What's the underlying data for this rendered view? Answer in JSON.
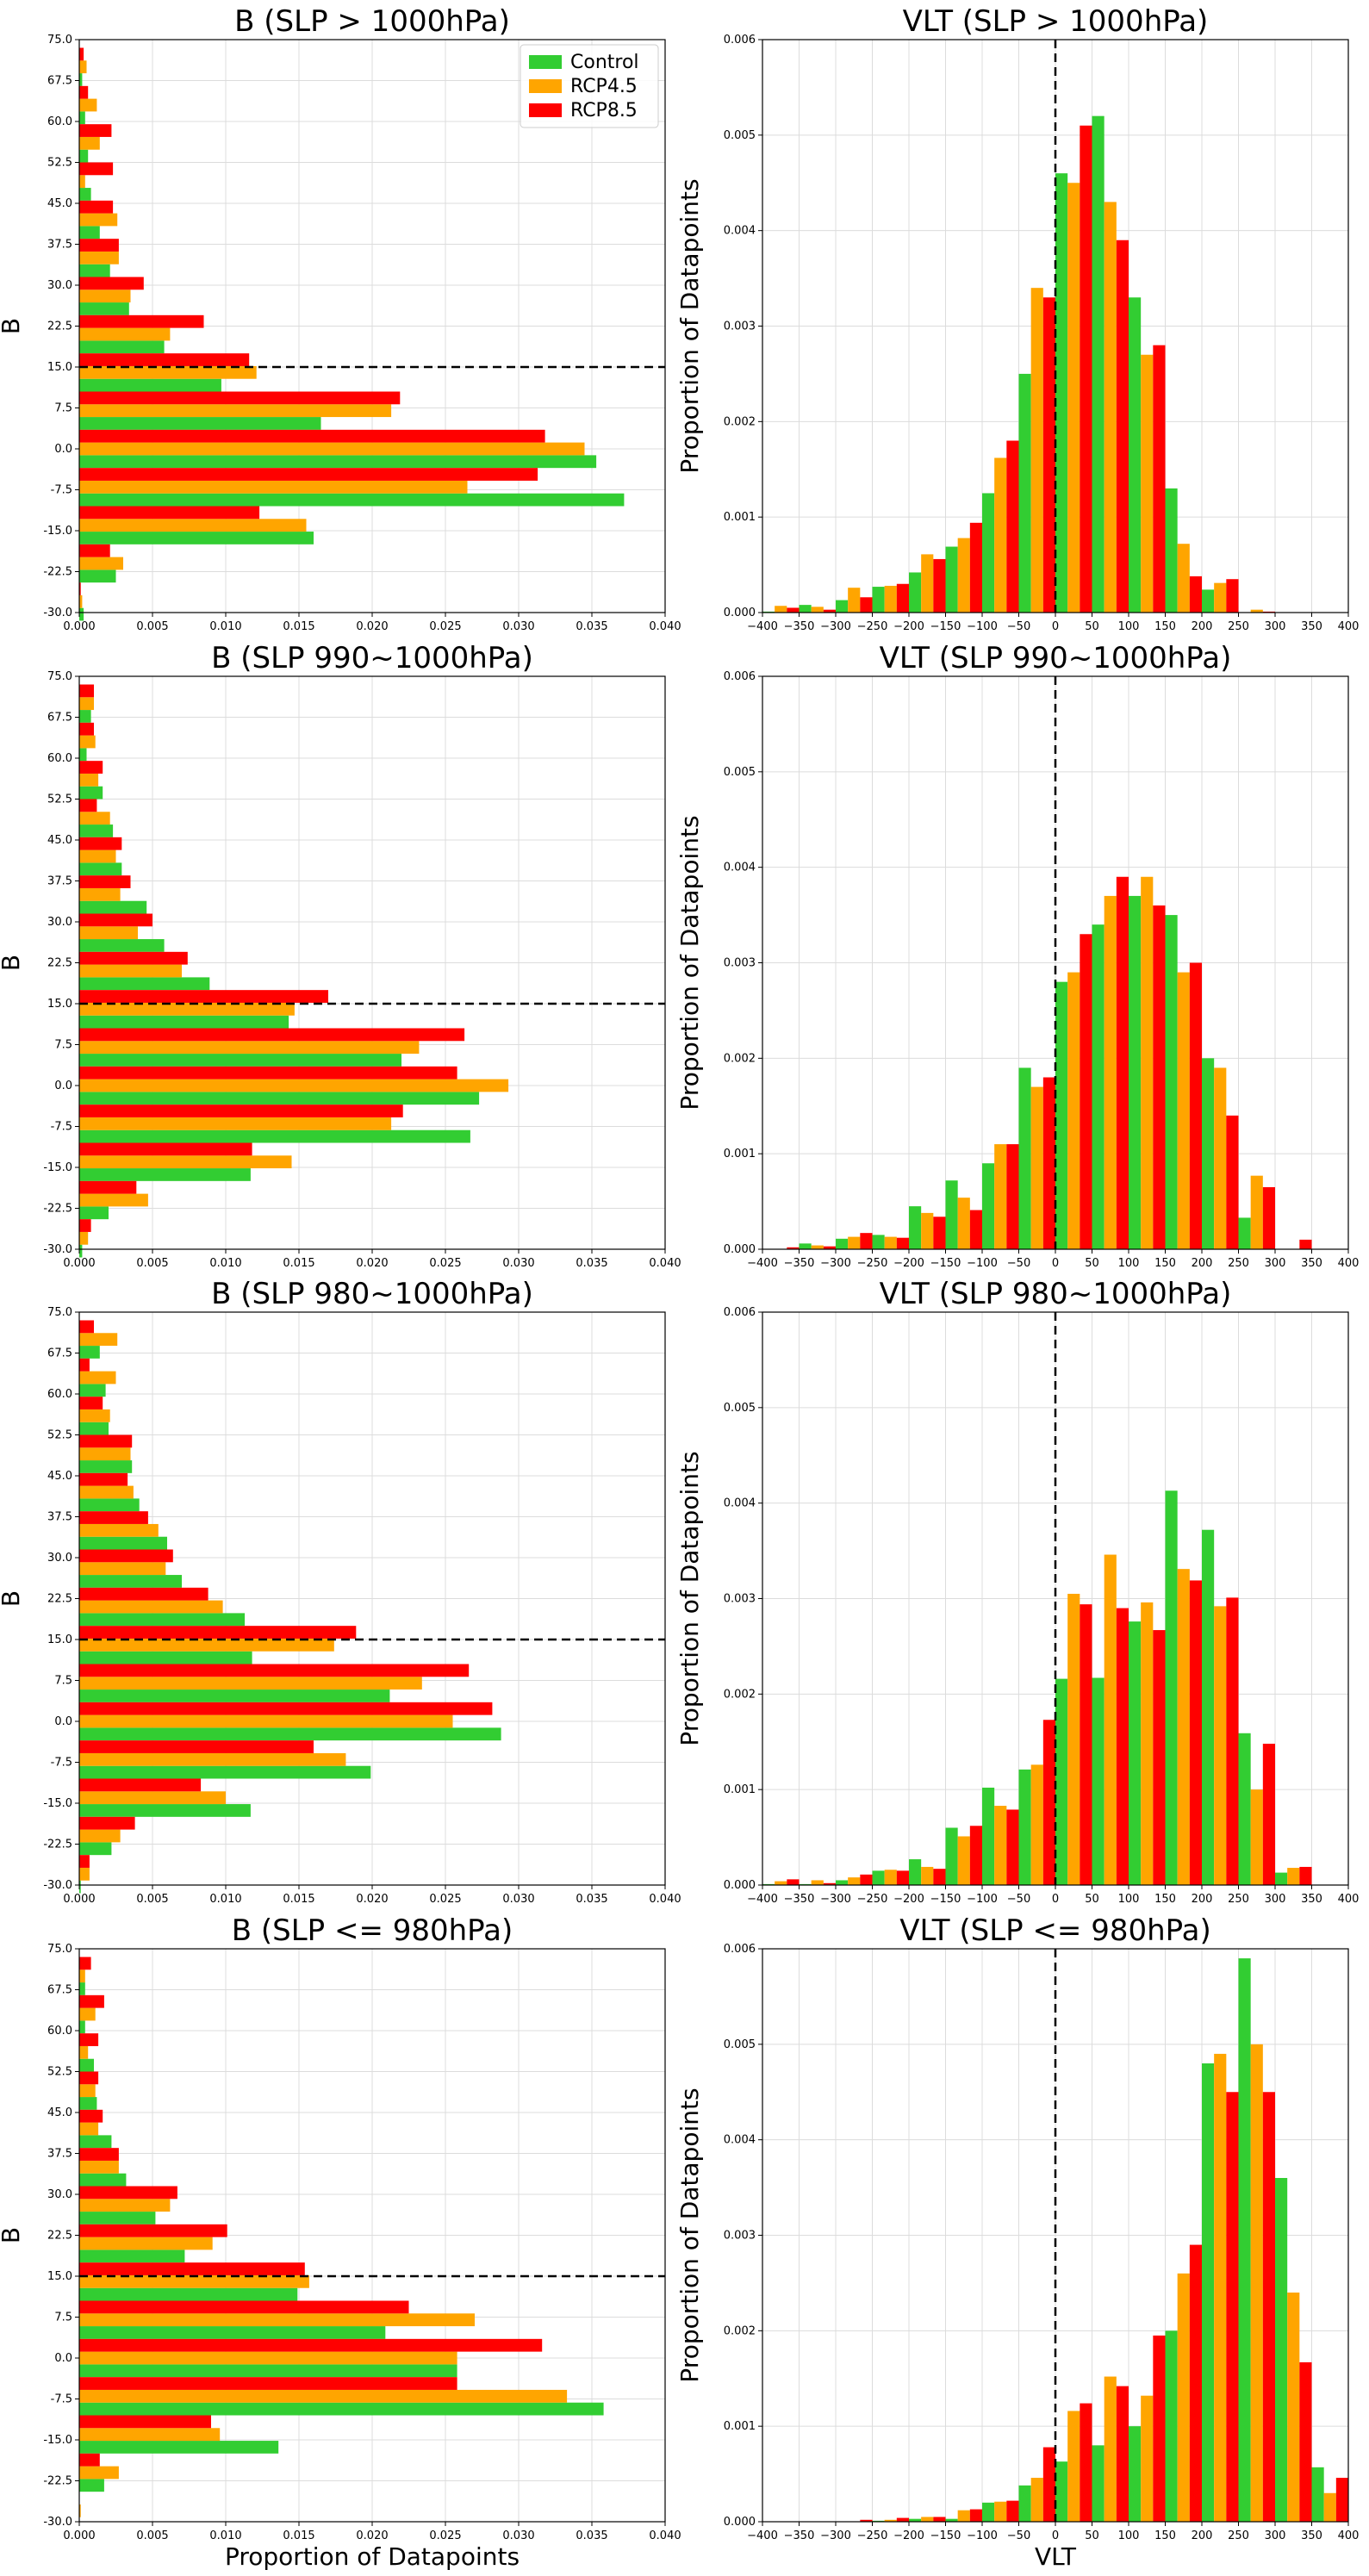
{
  "colors": {
    "Control": "#32cd32",
    "RCP4.5": "#ffa500",
    "RCP8.5": "#ff0000"
  },
  "legend": {
    "entries": [
      "Control",
      "RCP4.5",
      "RCP8.5"
    ],
    "placement": "upper-right of top-left panel"
  },
  "chart_data": [
    {
      "type": "bar",
      "orientation": "horizontal",
      "title": "B (SLP > 1000hPa)",
      "xlabel": "",
      "ylabel": "B",
      "xlim": [
        0,
        0.04
      ],
      "ylim": [
        -30,
        75
      ],
      "grid": true,
      "xticks": [
        "0.000",
        "0.005",
        "0.010",
        "0.015",
        "0.020",
        "0.025",
        "0.030",
        "0.035",
        "0.040"
      ],
      "yticks": [
        "-30.0",
        "-22.5",
        "-15.0",
        "-7.5",
        "0.0",
        "7.5",
        "15.0",
        "22.5",
        "30.0",
        "37.5",
        "45.0",
        "52.5",
        "60.0",
        "67.5",
        "75.0"
      ],
      "reference_line": {
        "axis": "y",
        "value": 15,
        "style": "dashed"
      },
      "bin_width": 7,
      "categories": [
        -28,
        -21,
        -14,
        -7,
        0,
        7,
        14,
        21,
        28,
        35,
        42,
        49,
        56,
        63,
        70
      ],
      "series": [
        {
          "name": "Control",
          "values": [
            0.0003,
            0.0025,
            0.016,
            0.0372,
            0.0353,
            0.0165,
            0.0097,
            0.0058,
            0.0034,
            0.0021,
            0.0014,
            0.0008,
            0.0006,
            0.0004,
            0.0002
          ]
        },
        {
          "name": "RCP4.5",
          "values": [
            0.0002,
            0.003,
            0.0155,
            0.0265,
            0.0345,
            0.0213,
            0.0121,
            0.0062,
            0.0035,
            0.0027,
            0.0026,
            0.0004,
            0.0014,
            0.0012,
            0.0005
          ]
        },
        {
          "name": "RCP8.5",
          "values": [
            0.0001,
            0.0021,
            0.0123,
            0.0313,
            0.0318,
            0.0219,
            0.0116,
            0.0085,
            0.0044,
            0.0027,
            0.0023,
            0.0023,
            0.0022,
            0.0006,
            0.0003
          ]
        }
      ]
    },
    {
      "type": "bar",
      "title": "VLT (SLP > 1000hPa)",
      "xlabel": "",
      "ylabel": "Proportion of Datapoints",
      "xlim": [
        -400,
        400
      ],
      "ylim": [
        0,
        0.006
      ],
      "grid": true,
      "xticks": [
        "−400",
        "−350",
        "−300",
        "−250",
        "−200",
        "−150",
        "−100",
        "−50",
        "0",
        "50",
        "100",
        "150",
        "200",
        "250",
        "300",
        "350",
        "400"
      ],
      "yticks": [
        "0.000",
        "0.001",
        "0.002",
        "0.003",
        "0.004",
        "0.005",
        "0.006"
      ],
      "reference_line": {
        "axis": "x",
        "value": 0,
        "style": "dashed"
      },
      "bin_width": 50,
      "categories": [
        -375,
        -325,
        -275,
        -225,
        -175,
        -125,
        -75,
        -25,
        25,
        75,
        125,
        175,
        225,
        275,
        325
      ],
      "series": [
        {
          "name": "Control",
          "values": [
            1e-05,
            8e-05,
            0.00013,
            0.00027,
            0.00042,
            0.00069,
            0.00125,
            0.0025,
            0.0046,
            0.0052,
            0.0033,
            0.0013,
            0.00024,
            0,
            0
          ]
        },
        {
          "name": "RCP4.5",
          "values": [
            7e-05,
            6e-05,
            0.00026,
            0.00028,
            0.00061,
            0.00078,
            0.00162,
            0.0034,
            0.0045,
            0.0043,
            0.0027,
            0.00072,
            0.00031,
            3e-05,
            0
          ]
        },
        {
          "name": "RCP8.5",
          "values": [
            5e-05,
            3e-05,
            0.00016,
            0.0003,
            0.00056,
            0.00094,
            0.0018,
            0.0033,
            0.0051,
            0.0039,
            0.0028,
            0.00038,
            0.00035,
            1e-05,
            0
          ]
        }
      ]
    },
    {
      "type": "bar",
      "orientation": "horizontal",
      "title": "B (SLP 990~1000hPa)",
      "xlabel": "",
      "ylabel": "B",
      "xlim": [
        0,
        0.04
      ],
      "ylim": [
        -30,
        75
      ],
      "grid": true,
      "xticks": [
        "0.000",
        "0.005",
        "0.010",
        "0.015",
        "0.020",
        "0.025",
        "0.030",
        "0.035",
        "0.040"
      ],
      "yticks": [
        "-30.0",
        "-22.5",
        "-15.0",
        "-7.5",
        "0.0",
        "7.5",
        "15.0",
        "22.5",
        "30.0",
        "37.5",
        "45.0",
        "52.5",
        "60.0",
        "67.5",
        "75.0"
      ],
      "reference_line": {
        "axis": "y",
        "value": 15,
        "style": "dashed"
      },
      "bin_width": 7,
      "categories": [
        -28,
        -21,
        -14,
        -7,
        0,
        7,
        14,
        21,
        28,
        35,
        42,
        49,
        56,
        63,
        70
      ],
      "series": [
        {
          "name": "Control",
          "values": [
            0.0002,
            0.002,
            0.0117,
            0.0267,
            0.0273,
            0.022,
            0.0143,
            0.0089,
            0.0058,
            0.0046,
            0.0029,
            0.0023,
            0.0016,
            0.0005,
            0.0008
          ]
        },
        {
          "name": "RCP4.5",
          "values": [
            0.0006,
            0.0047,
            0.0145,
            0.0213,
            0.0293,
            0.0232,
            0.0147,
            0.007,
            0.004,
            0.0028,
            0.0025,
            0.0021,
            0.0013,
            0.0011,
            0.001
          ]
        },
        {
          "name": "RCP8.5",
          "values": [
            0.0008,
            0.0039,
            0.0118,
            0.0221,
            0.0258,
            0.0263,
            0.017,
            0.0074,
            0.005,
            0.0035,
            0.0029,
            0.0012,
            0.0016,
            0.001,
            0.001
          ]
        }
      ]
    },
    {
      "type": "bar",
      "title": "VLT (SLP 990~1000hPa)",
      "xlabel": "",
      "ylabel": "Proportion of Datapoints",
      "xlim": [
        -400,
        400
      ],
      "ylim": [
        0,
        0.006
      ],
      "grid": true,
      "xticks": [
        "−400",
        "−350",
        "−300",
        "−250",
        "−200",
        "−150",
        "−100",
        "−50",
        "0",
        "50",
        "100",
        "150",
        "200",
        "250",
        "300",
        "350",
        "400"
      ],
      "yticks": [
        "0.000",
        "0.001",
        "0.002",
        "0.003",
        "0.004",
        "0.005",
        "0.006"
      ],
      "reference_line": {
        "axis": "x",
        "value": 0,
        "style": "dashed"
      },
      "bin_width": 50,
      "categories": [
        -375,
        -325,
        -275,
        -225,
        -175,
        -125,
        -75,
        -25,
        25,
        75,
        125,
        175,
        225,
        275,
        325
      ],
      "series": [
        {
          "name": "Control",
          "values": [
            0,
            6e-05,
            0.00011,
            0.00015,
            0.00045,
            0.00072,
            0.0009,
            0.0019,
            0.0028,
            0.0034,
            0.0037,
            0.0035,
            0.002,
            0.00033,
            0
          ]
        },
        {
          "name": "RCP4.5",
          "values": [
            0,
            4e-05,
            0.00013,
            0.00013,
            0.00038,
            0.00054,
            0.0011,
            0.0017,
            0.0029,
            0.0037,
            0.0039,
            0.0029,
            0.0019,
            0.00077,
            0
          ]
        },
        {
          "name": "RCP8.5",
          "values": [
            2e-05,
            3e-05,
            0.00017,
            0.00012,
            0.00034,
            0.00041,
            0.0011,
            0.0018,
            0.0033,
            0.0039,
            0.0036,
            0.003,
            0.0014,
            0.00065,
            0.0001
          ]
        }
      ]
    },
    {
      "type": "bar",
      "orientation": "horizontal",
      "title": "B (SLP 980~1000hPa)",
      "xlabel": "",
      "ylabel": "B",
      "xlim": [
        0,
        0.04
      ],
      "ylim": [
        -30,
        75
      ],
      "grid": true,
      "xticks": [
        "0.000",
        "0.005",
        "0.010",
        "0.015",
        "0.020",
        "0.025",
        "0.030",
        "0.035",
        "0.040"
      ],
      "yticks": [
        "-30.0",
        "-22.5",
        "-15.0",
        "-7.5",
        "0.0",
        "7.5",
        "15.0",
        "22.5",
        "30.0",
        "37.5",
        "45.0",
        "52.5",
        "60.0",
        "67.5",
        "75.0"
      ],
      "reference_line": {
        "axis": "y",
        "value": 15,
        "style": "dashed"
      },
      "bin_width": 7,
      "categories": [
        -28,
        -21,
        -14,
        -7,
        0,
        7,
        14,
        21,
        28,
        35,
        42,
        49,
        56,
        63,
        70
      ],
      "series": [
        {
          "name": "Control",
          "values": [
            0.0001,
            0.0022,
            0.0117,
            0.0199,
            0.0288,
            0.0212,
            0.0118,
            0.0113,
            0.007,
            0.006,
            0.0041,
            0.0036,
            0.002,
            0.0018,
            0.0014
          ]
        },
        {
          "name": "RCP4.5",
          "values": [
            0.0007,
            0.0028,
            0.01,
            0.0182,
            0.0255,
            0.0234,
            0.0174,
            0.0098,
            0.0059,
            0.0054,
            0.0037,
            0.0035,
            0.0021,
            0.0025,
            0.0026
          ]
        },
        {
          "name": "RCP8.5",
          "values": [
            0.0007,
            0.0038,
            0.0083,
            0.016,
            0.0282,
            0.0266,
            0.0189,
            0.0088,
            0.0064,
            0.0047,
            0.0033,
            0.0036,
            0.0016,
            0.0007,
            0.001
          ]
        }
      ]
    },
    {
      "type": "bar",
      "title": "VLT (SLP 980~1000hPa)",
      "xlabel": "",
      "ylabel": "Proportion of Datapoints",
      "xlim": [
        -400,
        400
      ],
      "ylim": [
        0,
        0.006
      ],
      "grid": true,
      "xticks": [
        "−400",
        "−350",
        "−300",
        "−250",
        "−200",
        "−150",
        "−100",
        "−50",
        "0",
        "50",
        "100",
        "150",
        "200",
        "250",
        "300",
        "350",
        "400"
      ],
      "yticks": [
        "0.000",
        "0.001",
        "0.002",
        "0.003",
        "0.004",
        "0.005",
        "0.006"
      ],
      "reference_line": {
        "axis": "x",
        "value": 0,
        "style": "dashed"
      },
      "bin_width": 50,
      "categories": [
        -375,
        -325,
        -275,
        -225,
        -175,
        -125,
        -75,
        -25,
        25,
        75,
        125,
        175,
        225,
        275,
        325
      ],
      "series": [
        {
          "name": "Control",
          "values": [
            1e-05,
            1e-05,
            5e-05,
            0.00015,
            0.00027,
            0.0006,
            0.00102,
            0.00121,
            0.00216,
            0.00217,
            0.00276,
            0.00413,
            0.00372,
            0.00159,
            0.00013
          ]
        },
        {
          "name": "RCP4.5",
          "values": [
            4e-05,
            5e-05,
            8e-05,
            0.00016,
            0.00019,
            0.00051,
            0.00083,
            0.00126,
            0.00305,
            0.00346,
            0.00296,
            0.00331,
            0.00292,
            0.001,
            0.00018
          ]
        },
        {
          "name": "RCP8.5",
          "values": [
            6e-05,
            2e-05,
            0.00011,
            0.00015,
            0.00017,
            0.00062,
            0.00079,
            0.00173,
            0.00294,
            0.0029,
            0.00267,
            0.00319,
            0.00301,
            0.00148,
            0.00019
          ]
        }
      ]
    },
    {
      "type": "bar",
      "orientation": "horizontal",
      "title": "B (SLP <= 980hPa)",
      "xlabel": "Proportion of Datapoints",
      "ylabel": "B",
      "xlim": [
        0,
        0.04
      ],
      "ylim": [
        -30,
        75
      ],
      "grid": true,
      "xticks": [
        "0.000",
        "0.005",
        "0.010",
        "0.015",
        "0.020",
        "0.025",
        "0.030",
        "0.035",
        "0.040"
      ],
      "yticks": [
        "-30.0",
        "-22.5",
        "-15.0",
        "-7.5",
        "0.0",
        "7.5",
        "15.0",
        "22.5",
        "30.0",
        "37.5",
        "45.0",
        "52.5",
        "60.0",
        "67.5",
        "75.0"
      ],
      "reference_line": {
        "axis": "y",
        "value": 15,
        "style": "dashed"
      },
      "bin_width": 7,
      "categories": [
        -28,
        -21,
        -14,
        -7,
        0,
        7,
        14,
        21,
        28,
        35,
        42,
        49,
        56,
        63,
        70
      ],
      "series": [
        {
          "name": "Control",
          "values": [
            0,
            0.0017,
            0.0136,
            0.0358,
            0.0258,
            0.0209,
            0.0149,
            0.0072,
            0.0052,
            0.0032,
            0.0022,
            0.0012,
            0.001,
            0.0004,
            0.0004
          ]
        },
        {
          "name": "RCP4.5",
          "values": [
            0.0001,
            0.0027,
            0.0096,
            0.0333,
            0.0258,
            0.027,
            0.0157,
            0.0091,
            0.0062,
            0.0027,
            0.0013,
            0.0011,
            0.0006,
            0.0011,
            0.0004
          ]
        },
        {
          "name": "RCP8.5",
          "values": [
            0,
            0.0014,
            0.009,
            0.0258,
            0.0316,
            0.0225,
            0.0154,
            0.0101,
            0.0067,
            0.0027,
            0.0016,
            0.0013,
            0.0013,
            0.0017,
            0.0008
          ]
        }
      ]
    },
    {
      "type": "bar",
      "title": "VLT (SLP <= 980hPa)",
      "xlabel": "VLT",
      "ylabel": "Proportion of Datapoints",
      "xlim": [
        -400,
        400
      ],
      "ylim": [
        0,
        0.006
      ],
      "grid": true,
      "xticks": [
        "−400",
        "−350",
        "−300",
        "−250",
        "−200",
        "−150",
        "−100",
        "−50",
        "0",
        "50",
        "100",
        "150",
        "200",
        "250",
        "300",
        "350",
        "400"
      ],
      "yticks": [
        "0.000",
        "0.001",
        "0.002",
        "0.003",
        "0.004",
        "0.005",
        "0.006"
      ],
      "reference_line": {
        "axis": "x",
        "value": 0,
        "style": "dashed"
      },
      "bin_width": 50,
      "categories": [
        -375,
        -325,
        -275,
        -225,
        -175,
        -125,
        -75,
        -25,
        25,
        75,
        125,
        175,
        225,
        275,
        325,
        375
      ],
      "series": [
        {
          "name": "Control",
          "values": [
            0,
            0,
            0,
            1e-05,
            3e-05,
            3e-05,
            0.0002,
            0.00038,
            0.00063,
            0.0008,
            0.001,
            0.002,
            0.0048,
            0.0059,
            0.0036,
            0.00057
          ]
        },
        {
          "name": "RCP4.5",
          "values": [
            0,
            0,
            0,
            2e-05,
            5e-05,
            0.00012,
            0.00021,
            0.00046,
            0.00116,
            0.00152,
            0.00132,
            0.0026,
            0.0049,
            0.005,
            0.0024,
            0.0003
          ]
        },
        {
          "name": "RCP8.5",
          "values": [
            0,
            0,
            2e-05,
            4e-05,
            5e-05,
            0.00013,
            0.00022,
            0.00078,
            0.00124,
            0.00142,
            0.00195,
            0.0029,
            0.0045,
            0.0045,
            0.00167,
            0.00046
          ]
        }
      ]
    }
  ]
}
